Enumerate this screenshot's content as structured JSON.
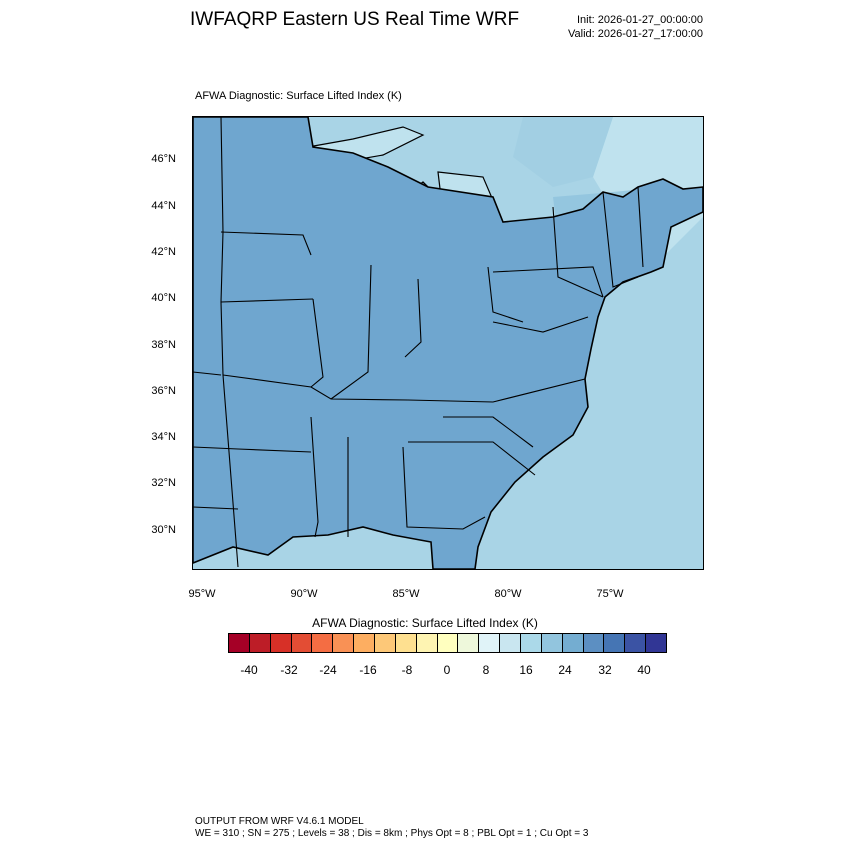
{
  "header": {
    "title": "IWFAQRP Eastern US Real Time WRF",
    "init": "Init: 2026-01-27_00:00:00",
    "valid": "Valid: 2026-01-27_17:00:00"
  },
  "plot": {
    "subtitle": "AFWA Diagnostic: Surface Lifted Index   (K)"
  },
  "map": {
    "lat_labels": [
      "46°N",
      "44°N",
      "42°N",
      "40°N",
      "38°N",
      "36°N",
      "34°N",
      "32°N",
      "30°N"
    ],
    "lon_labels": [
      "95°W",
      "90°W",
      "85°W",
      "80°W",
      "75°W"
    ],
    "land_color": "#6fa6cf",
    "land_light_color": "#b8dcea",
    "ocean_color": "#a9d4e6",
    "lake_color": "#bfe2ee"
  },
  "colorbar": {
    "title": "AFWA Diagnostic: Surface Lifted Index  (K)",
    "tick_labels": [
      "-40",
      "-32",
      "-24",
      "-16",
      "-8",
      "0",
      "8",
      "16",
      "24",
      "32",
      "40"
    ],
    "colors": [
      "#a50026",
      "#bd1d27",
      "#d73027",
      "#e34d34",
      "#f46d43",
      "#f99155",
      "#fdae61",
      "#fdc878",
      "#fee090",
      "#fef4b2",
      "#ffffbf",
      "#eef8db",
      "#e0f3f8",
      "#c9e6f0",
      "#abd9e9",
      "#92c5de",
      "#74add1",
      "#5c8fc2",
      "#4575b4",
      "#3b53a4",
      "#313695"
    ]
  },
  "footer": {
    "line1": "OUTPUT FROM WRF V4.6.1 MODEL",
    "line2": "WE = 310 ; SN = 275 ; Levels = 38 ; Dis = 8km ; Phys Opt = 8 ; PBL Opt = 1 ; Cu Opt = 3"
  }
}
